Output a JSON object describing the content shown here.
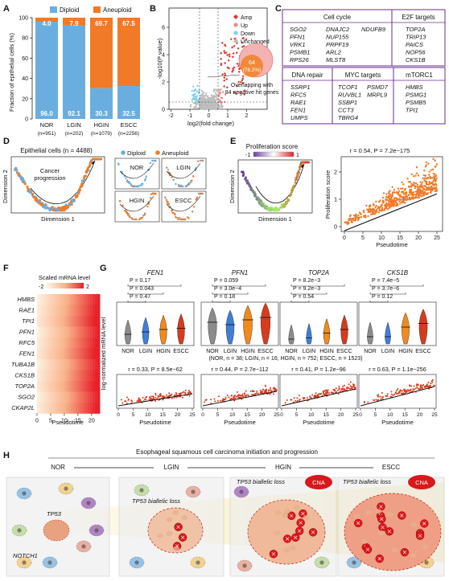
{
  "panel_labels": [
    "A",
    "B",
    "C",
    "D",
    "E",
    "F",
    "G",
    "H"
  ],
  "panelA": {
    "legend": [
      "Diploid",
      "Aneuploid"
    ],
    "ylabel": "Fraction of epithelial cells (%)",
    "tick_labels": [
      "0",
      "20",
      "40",
      "60",
      "80",
      "100"
    ],
    "categories": [
      "NOR",
      "LGIN",
      "HGIN",
      "ESCC"
    ],
    "n_labels": [
      "(n=951)",
      "(n=202)",
      "(n=1079)",
      "(n=2256)"
    ],
    "aneu_labels": [
      "4.0",
      "7.9",
      "69.7",
      "67.5"
    ],
    "dip_labels": [
      "96.0",
      "92.1",
      "30.3",
      "32.5"
    ]
  },
  "panelB": {
    "ylabel": "-log10(P value)",
    "xlabel": "log2(fold change)",
    "x_ticks": [
      "-2",
      "-1",
      "0",
      "1",
      "2"
    ],
    "y_ticks": [
      "0",
      "2",
      "4",
      "6"
    ],
    "legend": [
      "Amp",
      "Up",
      "Down",
      "Unchanged"
    ],
    "overlap_count": "64",
    "overlap_pct": "(76.2%)",
    "overlap_text_1": "Overlapping with",
    "overlap_text_2": "84 negative hit genes"
  },
  "panelC": {
    "groups": [
      {
        "title": "Cell cycle",
        "genes": [
          "SGO2",
          "DNAJC2",
          "NDUFB9",
          "PFN1",
          "NUP155",
          "VRK1",
          "PRPF19",
          "PSMB1",
          "ARL2",
          "RPS26",
          "MLST8"
        ]
      },
      {
        "title": "E2F targets",
        "genes": [
          "TOP2A",
          "TRIP13",
          "PAICS",
          "NOP56",
          "CKS1B"
        ]
      },
      {
        "title": "DNA repair",
        "genes": [
          "SSRP1",
          "RFC5",
          "RAE1",
          "FEN1",
          "UMPS"
        ]
      },
      {
        "title": "MYC targets",
        "genes": [
          "TCOF1",
          "PSMD7",
          "RUVBL1",
          "MRPL9",
          "SSBP1",
          "CCT3",
          "TBRG4"
        ]
      },
      {
        "title": "mTORC1",
        "genes": [
          "HMBS",
          "PSMG1",
          "PSMB5",
          "TPI1"
        ]
      }
    ]
  },
  "panelD": {
    "title": "Epithelial cells (n = 4488)",
    "arrow_label_1": "Cancer",
    "arrow_label_2": "progression",
    "ylabel": "Dimension 2",
    "xlabel": "Dimension 1",
    "legend": [
      "Diploid",
      "Aneuploid"
    ],
    "subpanels": [
      "NOR",
      "LGIN",
      "HGIN",
      "ESCC"
    ]
  },
  "panelE": {
    "title": "Proliferation score",
    "colorbar_min": "-1",
    "colorbar_max": "1",
    "ylabel": "Dimension 2",
    "xlabel": "Dimension 1",
    "stat": "r = 0.54, P = 7.2e−175",
    "scatter_ylabel": "Proliferation score",
    "scatter_xlabel": "Pseudotime",
    "x_ticks": [
      "0",
      "5",
      "10",
      "15",
      "20",
      "25"
    ],
    "y_ticks": [
      "0",
      "1",
      "2"
    ]
  },
  "panelF": {
    "legend_title": "Scaled mRNA level",
    "legend_min": "-2",
    "legend_max": "2",
    "genes": [
      "HMBS",
      "RAE1",
      "TPI1",
      "PFN1",
      "RFC5",
      "FEN1",
      "TUBA1B",
      "CKS1B",
      "TOP2A",
      "SGO2",
      "CKAP2L"
    ],
    "x_ticks": [
      "0",
      "5",
      "10",
      "15",
      "20"
    ],
    "xlabel": "Pseudotime"
  },
  "panelG": {
    "ylabel": "log-normalized mRNA level",
    "genes": [
      "FEN1",
      "PFN1",
      "TOP2A",
      "CKS1B"
    ],
    "groups": [
      "NOR",
      "LGIN",
      "HGIN",
      "ESCC"
    ],
    "group_colors": [
      "#8c8c8c",
      "#3f7fd6",
      "#f08a1c",
      "#d63b1e"
    ],
    "pvals": [
      [
        "P = 0.17",
        "P = 0.043",
        "P = 0.47"
      ],
      [
        "P = 0.059",
        "P = 3.0e−4",
        "P = 0.18"
      ],
      [
        "P = 8.2e−3",
        "P = 9.2e−3",
        "P = 0.54"
      ],
      [
        "P = 7.4e−5",
        "P = 3.7e−6",
        "P = 0.12"
      ]
    ],
    "n_note": "(NOR, n = 38; LGIN, n = 16; HGIN, n = 752; ESCC, n = 1523)",
    "correlations": [
      "r = 0.33, P = 8.5e−62",
      "r = 0.44, P = 2.7e−112",
      "r = 0.41, P = 1.2e−96",
      "r = 0.63, P = 1.1e−256"
    ],
    "x_ticks": [
      "0",
      "5",
      "10",
      "15",
      "20",
      "25"
    ],
    "xlabel": "Pseudotime"
  },
  "panelH": {
    "title": "Esophageal squamous cell carcinoma initiation and progression",
    "stages": [
      "NOR",
      "LGIN",
      "HGIN",
      "ESCC"
    ],
    "tp53": "TP53",
    "notch1": "NOTCH1",
    "biallelic": "TP53 biallelic loss",
    "cna": "CNA"
  }
}
